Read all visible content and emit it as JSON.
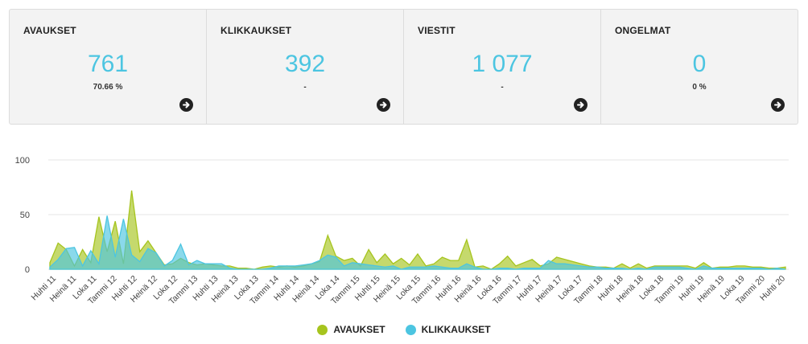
{
  "stats": [
    {
      "label": "AVAUKSET",
      "value": "761",
      "sub": "70.66 %"
    },
    {
      "label": "KLIKKAUKSET",
      "value": "392",
      "sub": "-"
    },
    {
      "label": "VIESTIT",
      "value": "1 077",
      "sub": "-"
    },
    {
      "label": "ONGELMAT",
      "value": "0",
      "sub": "0 %"
    }
  ],
  "colors": {
    "avaukset": "#a6c41e",
    "klikkaukset": "#4cc5e1",
    "accent": "#4cc5e1"
  },
  "legend": [
    "AVAUKSET",
    "KLIKKAUKSET"
  ],
  "chart_data": {
    "type": "area",
    "ylim": [
      0,
      100
    ],
    "yticks": [
      0,
      50,
      100
    ],
    "grid": true,
    "legend_position": "bottom",
    "categories": [
      "Huhti 11",
      "Heinä 11",
      "Loka 11",
      "Tammi 12",
      "Huhti 12",
      "Heinä 12",
      "Loka 12",
      "Tammi 13",
      "Huhti 13",
      "Heinä 13",
      "Loka 13",
      "Tammi 14",
      "Huhti 14",
      "Heinä 14",
      "Loka 14",
      "Tammi 15",
      "Huhti 15",
      "Heinä 15",
      "Loka 15",
      "Tammi 16",
      "Huhti 16",
      "Heinä 16",
      "Loka 16",
      "Tammi 17",
      "Huhti 17",
      "Heinä 17",
      "Loka 17",
      "Tammi 18",
      "Huhti 18",
      "Heinä 18",
      "Loka 18",
      "Tammi 19",
      "Huhti 19",
      "Heinä 19",
      "Loka 19",
      "Tammi 20",
      "Huhti 20"
    ],
    "series": [
      {
        "name": "AVAUKSET",
        "values": [
          [
            0,
            6
          ],
          [
            1,
            24
          ],
          [
            2,
            18
          ],
          [
            3,
            3
          ],
          [
            4,
            18
          ],
          [
            5,
            6
          ],
          [
            6,
            48
          ],
          [
            7,
            16
          ],
          [
            8,
            44
          ],
          [
            9,
            5
          ],
          [
            10,
            72
          ],
          [
            11,
            16
          ],
          [
            12,
            26
          ],
          [
            13,
            15
          ],
          [
            14,
            4
          ],
          [
            15,
            5
          ],
          [
            16,
            10
          ],
          [
            17,
            6
          ],
          [
            18,
            4
          ],
          [
            19,
            5
          ],
          [
            20,
            4
          ],
          [
            21,
            3
          ],
          [
            22,
            3
          ],
          [
            23,
            1
          ],
          [
            24,
            1
          ],
          [
            25,
            0
          ],
          [
            26,
            2
          ],
          [
            27,
            3
          ],
          [
            28,
            2
          ],
          [
            29,
            3
          ],
          [
            30,
            2
          ],
          [
            31,
            3
          ],
          [
            32,
            5
          ],
          [
            33,
            7
          ],
          [
            34,
            31
          ],
          [
            35,
            12
          ],
          [
            36,
            8
          ],
          [
            37,
            10
          ],
          [
            38,
            3
          ],
          [
            39,
            18
          ],
          [
            40,
            6
          ],
          [
            41,
            14
          ],
          [
            42,
            5
          ],
          [
            43,
            10
          ],
          [
            44,
            4
          ],
          [
            45,
            14
          ],
          [
            46,
            3
          ],
          [
            47,
            5
          ],
          [
            48,
            11
          ],
          [
            49,
            8
          ],
          [
            50,
            8
          ],
          [
            51,
            27
          ],
          [
            52,
            2
          ],
          [
            53,
            3
          ],
          [
            54,
            0
          ],
          [
            55,
            5
          ],
          [
            56,
            12
          ],
          [
            57,
            3
          ],
          [
            58,
            6
          ],
          [
            59,
            9
          ],
          [
            60,
            3
          ],
          [
            61,
            5
          ],
          [
            62,
            11
          ],
          [
            63,
            9
          ],
          [
            64,
            7
          ],
          [
            65,
            5
          ],
          [
            66,
            3
          ],
          [
            67,
            2
          ],
          [
            68,
            2
          ],
          [
            69,
            1
          ],
          [
            70,
            5
          ],
          [
            71,
            1
          ],
          [
            72,
            5
          ],
          [
            73,
            1
          ],
          [
            74,
            3
          ],
          [
            75,
            3
          ],
          [
            76,
            3
          ],
          [
            77,
            3
          ],
          [
            78,
            3
          ],
          [
            79,
            1
          ],
          [
            80,
            6
          ],
          [
            81,
            1
          ],
          [
            82,
            2
          ],
          [
            83,
            2
          ],
          [
            84,
            3
          ],
          [
            85,
            3
          ],
          [
            86,
            2
          ],
          [
            87,
            2
          ],
          [
            88,
            1
          ],
          [
            89,
            1
          ],
          [
            90,
            2
          ]
        ]
      },
      {
        "name": "KLIKKAUKSET",
        "values": [
          [
            0,
            2
          ],
          [
            1,
            9
          ],
          [
            2,
            19
          ],
          [
            3,
            20
          ],
          [
            4,
            3
          ],
          [
            5,
            17
          ],
          [
            6,
            5
          ],
          [
            7,
            49
          ],
          [
            8,
            11
          ],
          [
            9,
            46
          ],
          [
            10,
            13
          ],
          [
            11,
            7
          ],
          [
            12,
            19
          ],
          [
            13,
            15
          ],
          [
            14,
            3
          ],
          [
            15,
            8
          ],
          [
            16,
            23
          ],
          [
            17,
            4
          ],
          [
            18,
            8
          ],
          [
            19,
            5
          ],
          [
            20,
            5
          ],
          [
            21,
            5
          ],
          [
            22,
            1
          ],
          [
            23,
            0
          ],
          [
            24,
            0
          ],
          [
            25,
            0
          ],
          [
            26,
            0
          ],
          [
            27,
            1
          ],
          [
            28,
            3
          ],
          [
            29,
            3
          ],
          [
            30,
            3
          ],
          [
            31,
            4
          ],
          [
            32,
            5
          ],
          [
            33,
            8
          ],
          [
            34,
            13
          ],
          [
            35,
            11
          ],
          [
            36,
            3
          ],
          [
            37,
            6
          ],
          [
            38,
            5
          ],
          [
            39,
            4
          ],
          [
            40,
            3
          ],
          [
            41,
            2
          ],
          [
            42,
            3
          ],
          [
            43,
            0
          ],
          [
            44,
            2
          ],
          [
            45,
            2
          ],
          [
            46,
            2
          ],
          [
            47,
            3
          ],
          [
            48,
            2
          ],
          [
            49,
            1
          ],
          [
            50,
            1
          ],
          [
            51,
            5
          ],
          [
            52,
            2
          ],
          [
            53,
            0
          ],
          [
            54,
            0
          ],
          [
            55,
            1
          ],
          [
            56,
            1
          ],
          [
            57,
            0
          ],
          [
            58,
            1
          ],
          [
            59,
            1
          ],
          [
            60,
            1
          ],
          [
            61,
            8
          ],
          [
            62,
            5
          ],
          [
            63,
            5
          ],
          [
            64,
            4
          ],
          [
            65,
            3
          ],
          [
            66,
            2
          ],
          [
            67,
            2
          ],
          [
            68,
            1
          ],
          [
            69,
            1
          ],
          [
            70,
            1
          ],
          [
            71,
            0
          ],
          [
            72,
            1
          ],
          [
            73,
            0
          ],
          [
            74,
            2
          ],
          [
            75,
            2
          ],
          [
            76,
            2
          ],
          [
            77,
            2
          ],
          [
            78,
            1
          ],
          [
            79,
            0
          ],
          [
            80,
            3
          ],
          [
            81,
            1
          ],
          [
            82,
            1
          ],
          [
            83,
            1
          ],
          [
            84,
            1
          ],
          [
            85,
            1
          ],
          [
            86,
            1
          ],
          [
            87,
            1
          ],
          [
            88,
            0
          ],
          [
            89,
            1
          ],
          [
            90,
            0
          ]
        ]
      }
    ],
    "x_max": 90
  }
}
